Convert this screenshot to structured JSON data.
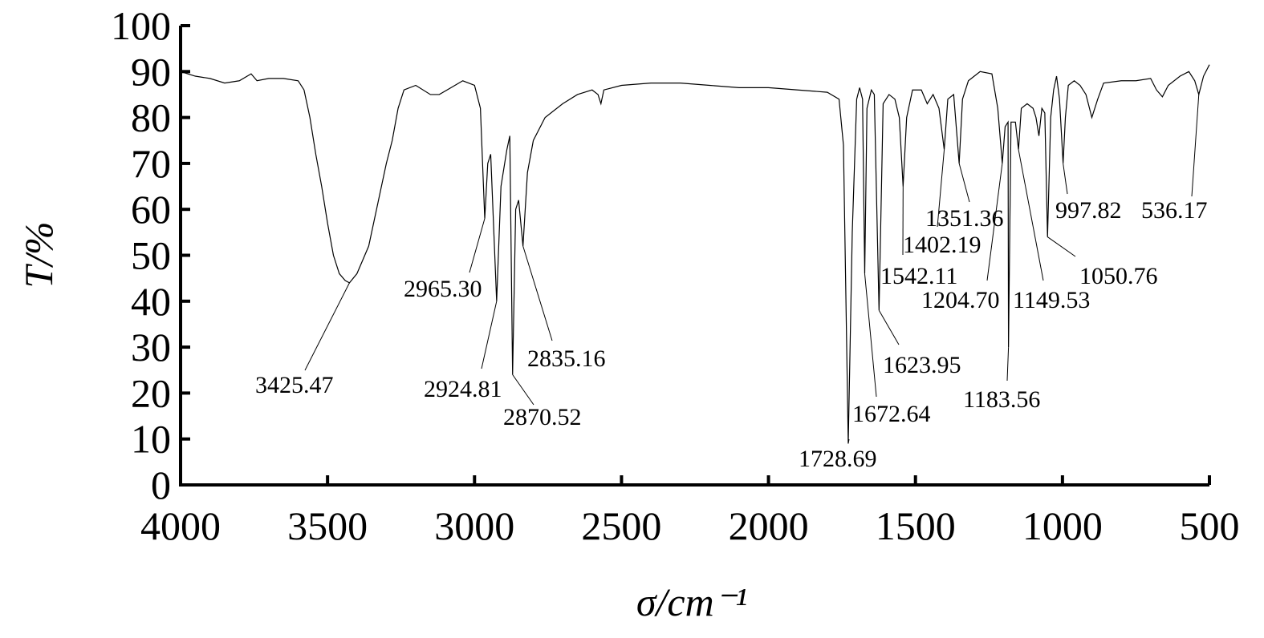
{
  "chart_data": {
    "type": "line",
    "xlabel": "σ/cm⁻¹",
    "ylabel": "T/%",
    "xlim": [
      4000,
      500
    ],
    "ylim": [
      0,
      100
    ],
    "xticks": [
      4000,
      3500,
      3000,
      2500,
      2000,
      1500,
      1000,
      500
    ],
    "yticks": [
      0,
      10,
      20,
      30,
      40,
      50,
      60,
      70,
      80,
      90,
      100
    ],
    "grid": false,
    "x": [
      4000,
      3950,
      3900,
      3850,
      3800,
      3760,
      3740,
      3700,
      3650,
      3600,
      3580,
      3560,
      3540,
      3520,
      3500,
      3480,
      3460,
      3440,
      3425.47,
      3400,
      3380,
      3360,
      3340,
      3320,
      3300,
      3280,
      3260,
      3240,
      3200,
      3150,
      3120,
      3080,
      3040,
      3000,
      2980,
      2965.3,
      2955,
      2945,
      2924.81,
      2910,
      2890,
      2880,
      2870.52,
      2860,
      2850,
      2835.16,
      2820,
      2800,
      2760,
      2700,
      2650,
      2600,
      2580,
      2570,
      2560,
      2500,
      2400,
      2300,
      2200,
      2100,
      2000,
      1900,
      1800,
      1760,
      1745,
      1728.69,
      1715,
      1700,
      1690,
      1680,
      1672.64,
      1665,
      1650,
      1640,
      1623.95,
      1610,
      1590,
      1570,
      1555,
      1542.11,
      1530,
      1510,
      1480,
      1460,
      1440,
      1420,
      1402.19,
      1390,
      1370,
      1351.36,
      1340,
      1320,
      1280,
      1240,
      1220,
      1204.7,
      1195,
      1185,
      1183.56,
      1175,
      1160,
      1149.53,
      1140,
      1120,
      1100,
      1090,
      1080,
      1070,
      1060,
      1050.76,
      1040,
      1030,
      1020,
      1010,
      997.82,
      990,
      980,
      960,
      940,
      920,
      900,
      880,
      860,
      800,
      750,
      700,
      680,
      660,
      640,
      600,
      570,
      550,
      536.17,
      520,
      500
    ],
    "series": [
      {
        "color": "#000000",
        "values": [
          90,
          89,
          88.5,
          87.5,
          88,
          89.5,
          88,
          88.5,
          88.5,
          88,
          86,
          80,
          72,
          65,
          57,
          50,
          46,
          44.5,
          44,
          46,
          49,
          52,
          58,
          64,
          70,
          75,
          82,
          86,
          87,
          85,
          85,
          86.5,
          88,
          87,
          82,
          58,
          70,
          72,
          40,
          65,
          73,
          76,
          24,
          60,
          62,
          52,
          68,
          75,
          80,
          83,
          85,
          86,
          85,
          83,
          86,
          87,
          87.5,
          87.5,
          87,
          86.5,
          86.5,
          86,
          85.5,
          84,
          74,
          9,
          55,
          84,
          86.5,
          84,
          46,
          82,
          86,
          85,
          38,
          83,
          85,
          84,
          80,
          65,
          80,
          86,
          86,
          83,
          85,
          82,
          73,
          84,
          85,
          70,
          84,
          88,
          90,
          89.5,
          82,
          70,
          78,
          79,
          30,
          79,
          79,
          73,
          82,
          83,
          82,
          80,
          76,
          82,
          81,
          54,
          80,
          86,
          89,
          84,
          70,
          80,
          87,
          88,
          87,
          85,
          80,
          84,
          87.5,
          88,
          88,
          88.5,
          86,
          84.5,
          87,
          89,
          90,
          88,
          85,
          89,
          91.5
        ]
      }
    ],
    "annotations": [
      {
        "label": "3425.47",
        "x": 3425.47,
        "y": 44
      },
      {
        "label": "2965.30",
        "x": 2965.3,
        "y": 58
      },
      {
        "label": "2924.81",
        "x": 2924.81,
        "y": 40
      },
      {
        "label": "2870.52",
        "x": 2870.52,
        "y": 24
      },
      {
        "label": "2835.16",
        "x": 2835.16,
        "y": 52
      },
      {
        "label": "1728.69",
        "x": 1728.69,
        "y": 9
      },
      {
        "label": "1672.64",
        "x": 1672.64,
        "y": 46
      },
      {
        "label": "1623.95",
        "x": 1623.95,
        "y": 38
      },
      {
        "label": "1542.11",
        "x": 1542.11,
        "y": 65
      },
      {
        "label": "1402.19",
        "x": 1402.19,
        "y": 73
      },
      {
        "label": "1351.36",
        "x": 1351.36,
        "y": 70
      },
      {
        "label": "1204.70",
        "x": 1204.7,
        "y": 70
      },
      {
        "label": "1183.56",
        "x": 1183.56,
        "y": 30
      },
      {
        "label": "1149.53",
        "x": 1149.53,
        "y": 73
      },
      {
        "label": "1050.76",
        "x": 1050.76,
        "y": 54
      },
      {
        "label": "997.82",
        "x": 997.82,
        "y": 70
      },
      {
        "label": "536.17",
        "x": 536.17,
        "y": 85
      }
    ]
  }
}
